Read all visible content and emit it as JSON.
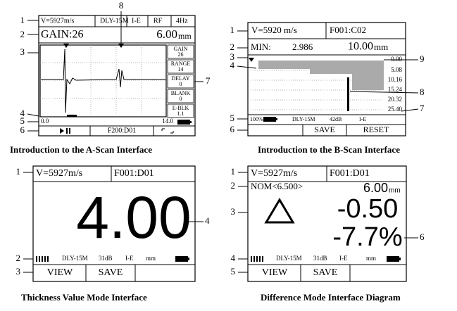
{
  "a_scan": {
    "caption": "Introduction to the A-Scan Interface",
    "status": [
      "V=5927m/s",
      "DLY-15M",
      "I-E",
      "RF",
      "4Hz"
    ],
    "gain": "GAIN:26",
    "reading": "6.00",
    "unit": "mm",
    "side_buttons": [
      {
        "label": "GAIN",
        "value": "26"
      },
      {
        "label": "RANGE",
        "value": "14"
      },
      {
        "label": "DELAY",
        "value": "0"
      },
      {
        "label": "BLANK",
        "value": "0"
      },
      {
        "label": "E-BLK",
        "value": "1.1"
      }
    ],
    "range_start": "0.0",
    "range_end": "14.0",
    "file": "F200:D01",
    "callouts": [
      "1",
      "2",
      "3",
      "4",
      "5",
      "6",
      "7",
      "8"
    ]
  },
  "b_scan": {
    "caption": "Introduction to the B-Scan Interface",
    "velocity": "V=5920 m/s",
    "file": "F001:C02",
    "min_label": "MIN:",
    "min_value": "2.986",
    "reading": "10.00",
    "unit": "mm",
    "depths": [
      "0.00",
      "5.08",
      "10.16",
      "15.24",
      "20.32",
      "25.40"
    ],
    "status": [
      "100%",
      "DLY-15M",
      "42dB",
      "I-E"
    ],
    "buttons": [
      "SAVE",
      "RESET"
    ],
    "callouts": [
      "1",
      "2",
      "3",
      "4",
      "5",
      "6",
      "9",
      "8",
      "7"
    ]
  },
  "thickness_mode": {
    "caption": "Thickness Value Mode Interface",
    "velocity": "V=5927m/s",
    "file": "F001:D01",
    "reading": "4.00",
    "status": [
      "DLY-15M",
      "31dB",
      "I-E",
      "mm"
    ],
    "buttons": [
      "VIEW",
      "SAVE"
    ],
    "callouts": [
      "1",
      "4",
      "2",
      "3"
    ]
  },
  "difference_mode": {
    "caption": "Difference Mode Interface Diagram",
    "velocity": "V=5927m/s",
    "file": "F001:D01",
    "nominal": "NOM<6.500>",
    "reading": "6.00",
    "unit": "mm",
    "difference": "-0.50",
    "percent": "-7.7%",
    "status": [
      "DLY-15M",
      "31dB",
      "I-E",
      "mm"
    ],
    "buttons": [
      "VIEW",
      "SAVE"
    ],
    "callouts": [
      "1",
      "2",
      "3",
      "6",
      "4",
      "5"
    ]
  }
}
